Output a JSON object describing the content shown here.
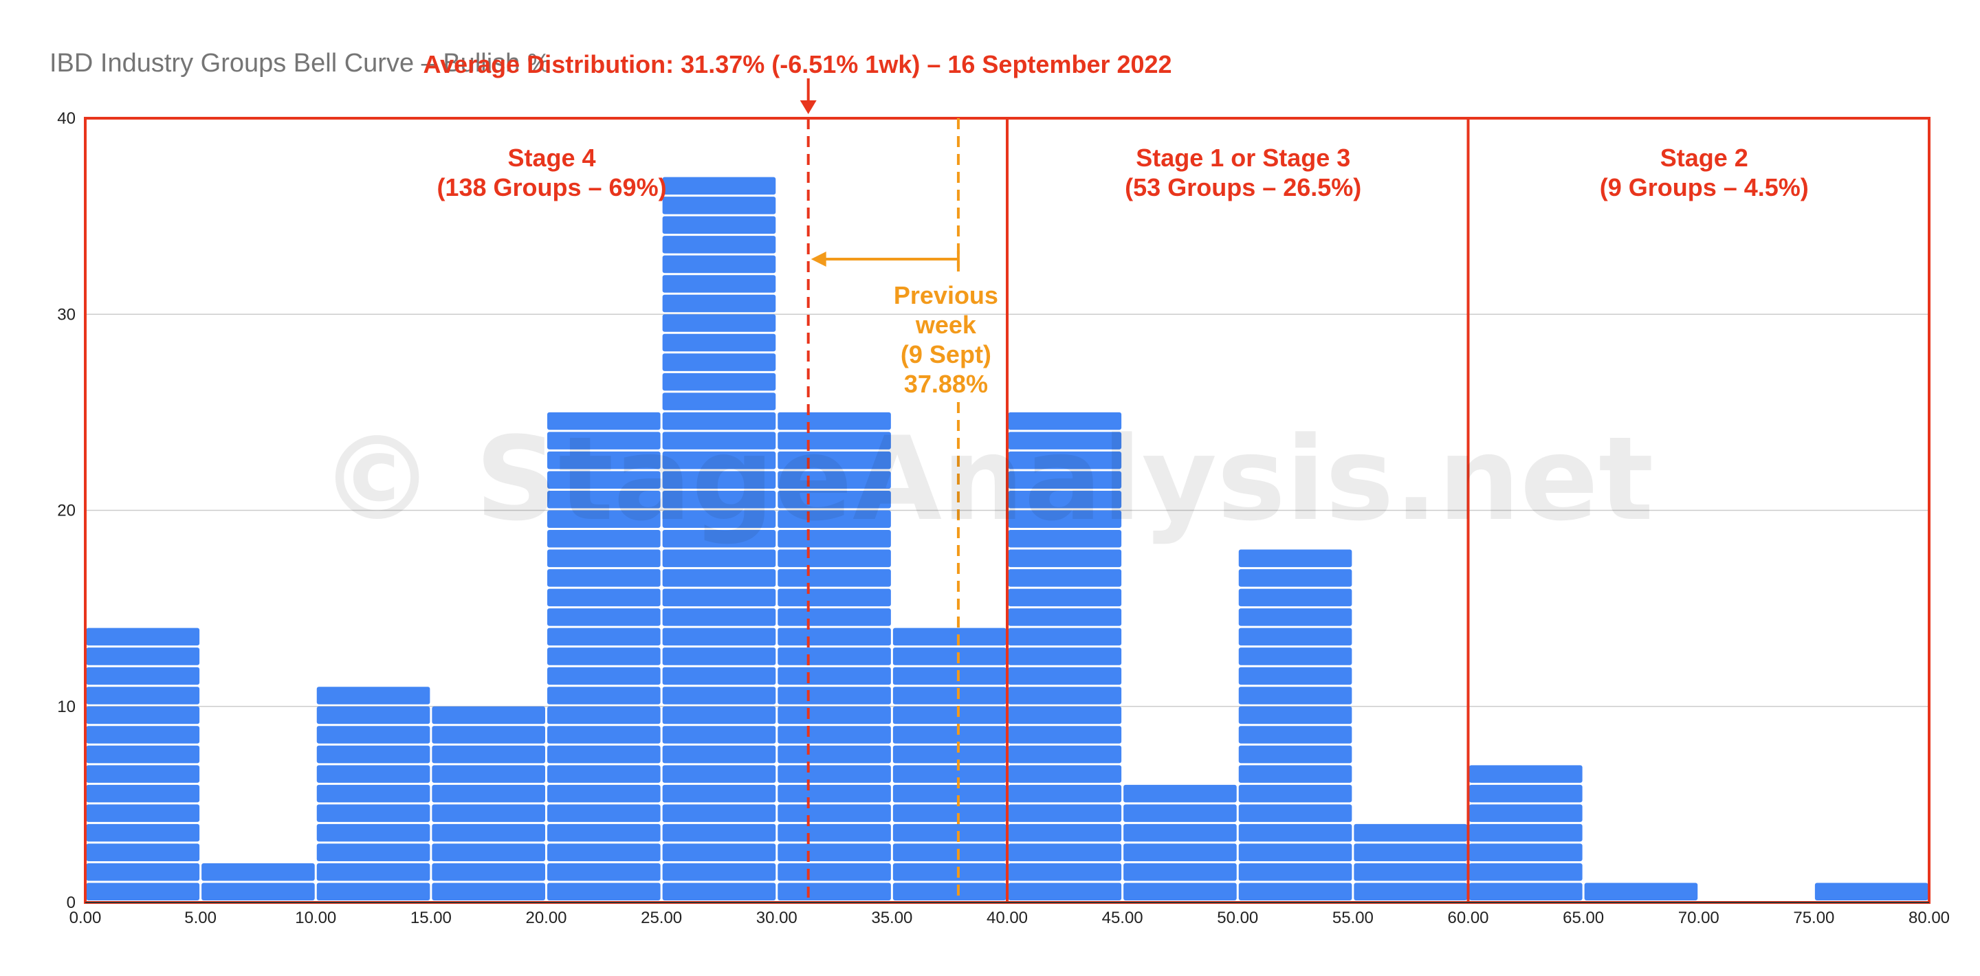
{
  "chart_data": {
    "type": "bar",
    "title": "IBD Industry Groups Bell Curve – Bullish %",
    "xlabel": "",
    "ylabel": "",
    "bin_edges": [
      0,
      5,
      10,
      15,
      20,
      25,
      30,
      35,
      40,
      45,
      50,
      55,
      60,
      65,
      70,
      75,
      80
    ],
    "values": [
      14,
      2,
      11,
      10,
      25,
      37,
      25,
      14,
      25,
      6,
      18,
      4,
      7,
      1,
      0,
      1
    ],
    "xlim": [
      0,
      80
    ],
    "ylim": [
      0,
      40
    ],
    "x_ticks": [
      "0.00",
      "5.00",
      "10.00",
      "15.00",
      "20.00",
      "25.00",
      "30.00",
      "35.00",
      "40.00",
      "45.00",
      "50.00",
      "55.00",
      "60.00",
      "65.00",
      "70.00",
      "75.00",
      "80.00"
    ],
    "y_ticks": [
      "0",
      "10",
      "20",
      "30",
      "40"
    ],
    "y_tick_values": [
      0,
      10,
      20,
      30,
      40
    ],
    "grid": true,
    "bar_color": "#4285f4",
    "annotations": {
      "average": {
        "label": "Average Distribution: 31.37% (-6.51% 1wk) – 16 September 2022",
        "value": 31.37,
        "color": "#e8351c"
      },
      "previous": {
        "lines": [
          "Previous",
          "week",
          "(9 Sept)",
          "37.88%"
        ],
        "value": 37.88,
        "color": "#f39a1a"
      },
      "stages": [
        {
          "range": [
            0,
            40
          ],
          "lines": [
            "Stage 4",
            "(138 Groups – 69%)"
          ]
        },
        {
          "range": [
            40,
            60
          ],
          "lines": [
            "Stage 1 or Stage 3",
            "(53 Groups – 26.5%)"
          ]
        },
        {
          "range": [
            60,
            80
          ],
          "lines": [
            "Stage 2",
            "(9 Groups – 4.5%)"
          ]
        }
      ],
      "stage_box_color": "#e8351c"
    },
    "watermark": "© StageAnalysis.net"
  }
}
